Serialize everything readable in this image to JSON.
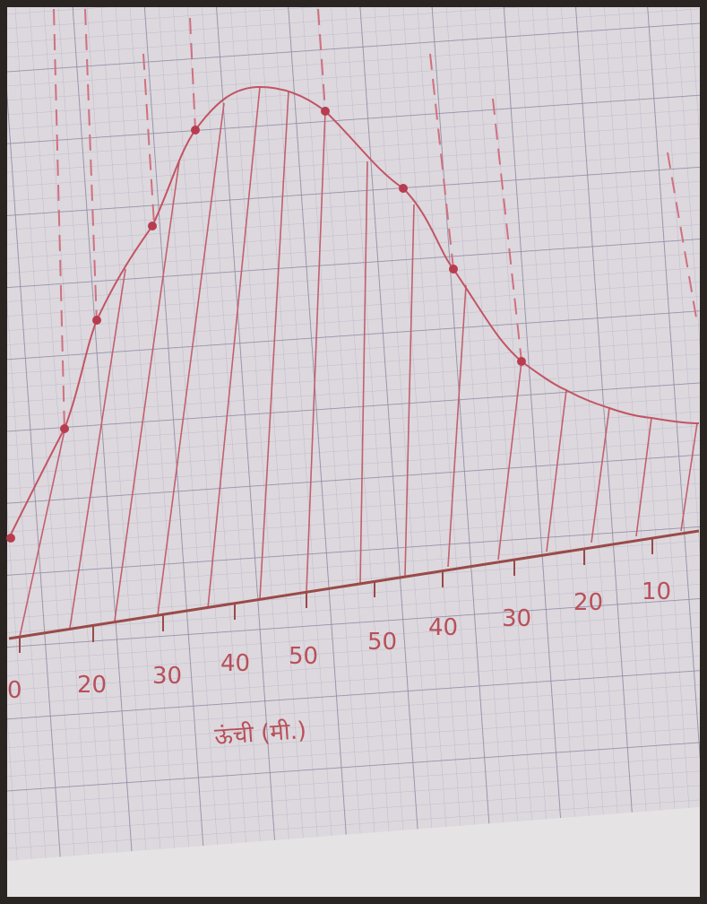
{
  "axis_labels": [
    "0",
    "20",
    "30",
    "40",
    "50",
    "50",
    "40",
    "30",
    "20",
    "10"
  ],
  "caption": "ऊंची (मी.)"
}
